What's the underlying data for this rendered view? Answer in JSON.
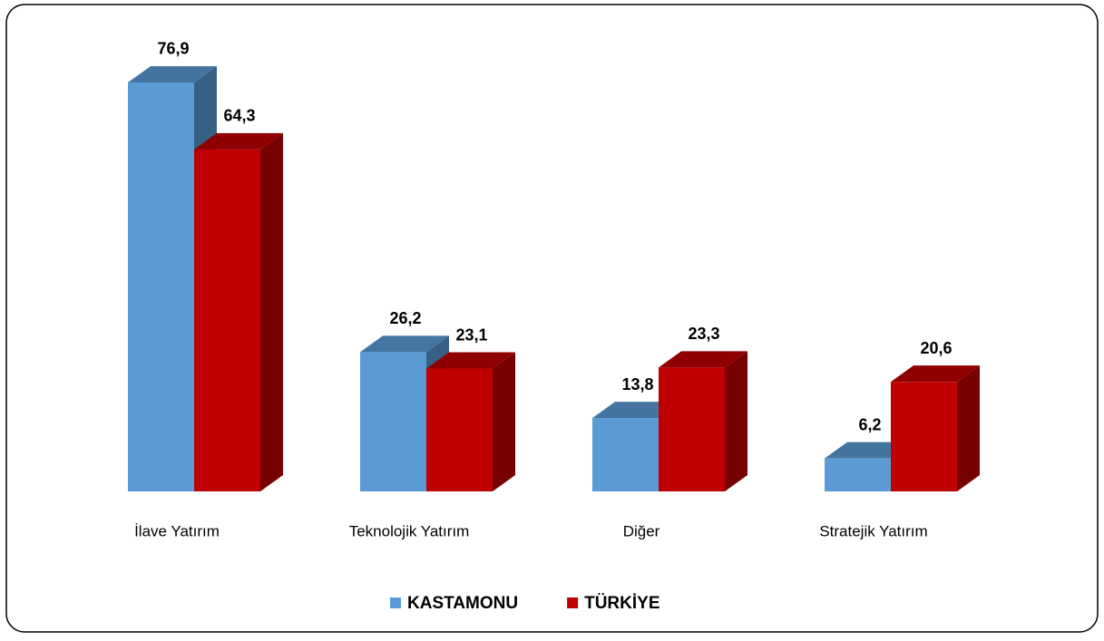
{
  "chart_data": {
    "type": "bar3d",
    "categories": [
      "İlave Yatırım",
      "Teknolojik Yatırım",
      "Diğer",
      "Stratejik Yatırım"
    ],
    "series": [
      {
        "name": "KASTAMONU",
        "color": "#5b9bd5",
        "values": [
          76.9,
          26.2,
          13.8,
          6.2
        ],
        "value_labels": [
          "76,9",
          "26,2",
          "13,8",
          "6,2"
        ]
      },
      {
        "name": "TÜRKİYE",
        "color": "#c00000",
        "values": [
          64.3,
          23.1,
          23.3,
          20.6
        ],
        "value_labels": [
          "64,3",
          "23,1",
          "23,3",
          "20,6"
        ]
      }
    ],
    "legend": "bottom"
  }
}
